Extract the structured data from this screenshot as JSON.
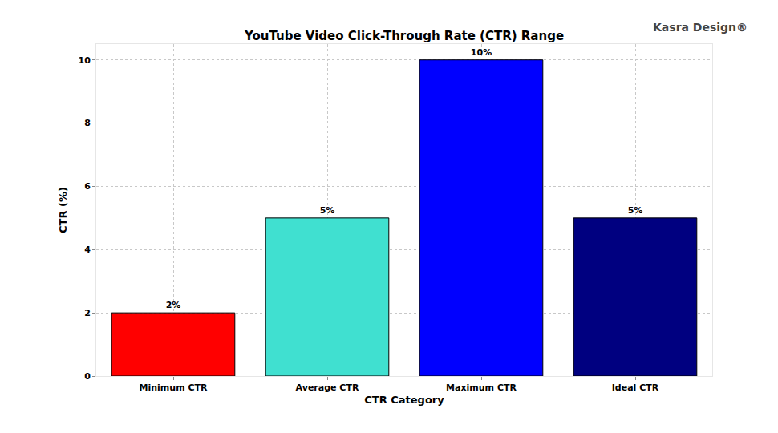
{
  "chart_data": {
    "type": "bar",
    "title": "YouTube Video Click-Through Rate (CTR) Range",
    "x_label": "CTR Category",
    "y_label": "CTR (%)",
    "categories": [
      "Minimum CTR",
      "Average CTR",
      "Maximum CTR",
      "Ideal CTR"
    ],
    "values": [
      2,
      5,
      10,
      5
    ],
    "value_labels": [
      "2%",
      "5%",
      "10%",
      "5%"
    ],
    "colors": [
      "#ff0000",
      "#40e0d0",
      "#0000ff",
      "#000080"
    ],
    "ylim": [
      0,
      10.5
    ],
    "yticks": [
      0,
      2,
      4,
      6,
      8,
      10
    ],
    "grid": true,
    "data_labels": true,
    "annotations": [
      "Kasra Design®"
    ]
  }
}
